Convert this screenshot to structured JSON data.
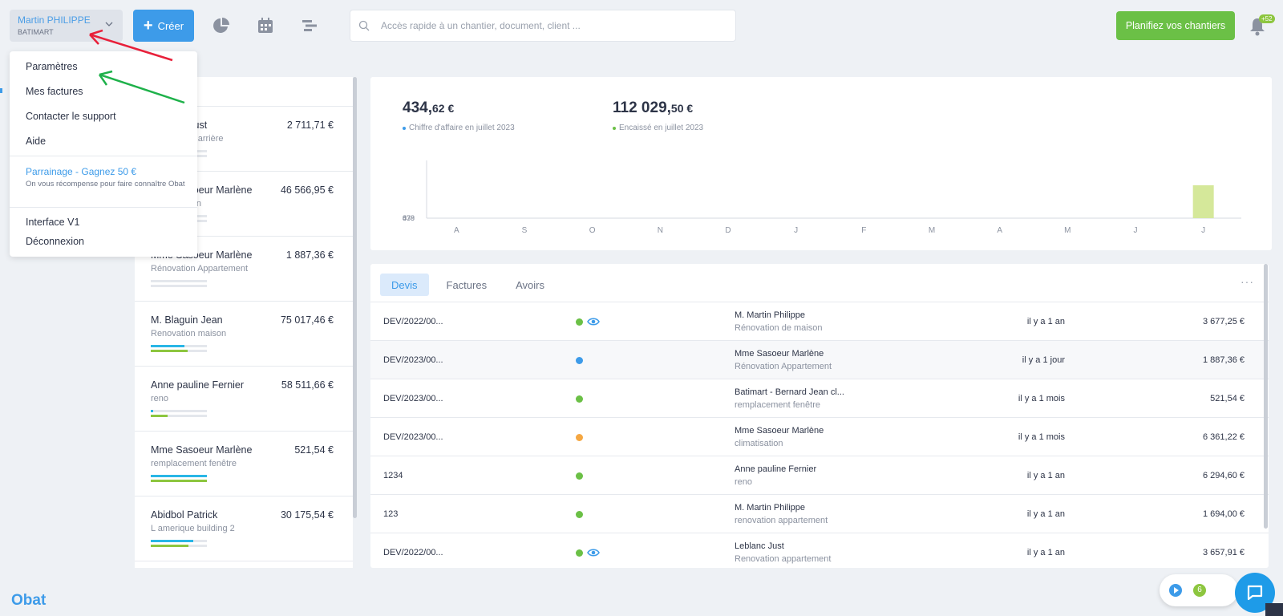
{
  "user": {
    "name": "Martin PHILIPPE",
    "company": "BATIMART"
  },
  "create_label": "Créer",
  "search": {
    "placeholder": "Accès rapide à un chantier, document, client ..."
  },
  "plan_label": "Planifiez vos chantiers",
  "notif_badge": "+52",
  "menu": {
    "settings": "Paramètres",
    "invoices": "Mes factures",
    "support": "Contacter le support",
    "help": "Aide",
    "referral_title": "Parrainage - Gagnez 50 €",
    "referral_sub": "On vous récompense pour faire connaître Obat",
    "interface_v1": "Interface V1",
    "logout": "Déconnexion"
  },
  "projects": [
    {
      "name": "Leblanc Just",
      "sub": "Rénovation arrière",
      "amount": "2 711,71 €",
      "bar1": 0.0,
      "bar2": 0.0
    },
    {
      "name": "Mme Sasoeur Marlène",
      "sub": "Climatisation",
      "amount": "46 566,95 €",
      "bar1": 0.0,
      "bar2": 0.0
    },
    {
      "name": "Mme Sasoeur Marlène",
      "sub": "Rénovation Appartement",
      "amount": "1 887,36 €",
      "bar1": 0.0,
      "bar2": 0.0
    },
    {
      "name": "M. Blaguin Jean",
      "sub": "Renovation maison",
      "amount": "75 017,46 €",
      "bar1": 0.6,
      "bar2": 0.65
    },
    {
      "name": "Anne pauline Fernier",
      "sub": "reno",
      "amount": "58 511,66 €",
      "bar1": 0.04,
      "bar2": 0.3
    },
    {
      "name": "Mme Sasoeur Marlène",
      "sub": "remplacement fenêtre",
      "amount": "521,54 €",
      "bar1": 1.0,
      "bar2": 1.0
    },
    {
      "name": "Abidbol Patrick",
      "sub": "L amerique building 2",
      "amount": "30 175,54 €",
      "bar1": 0.75,
      "bar2": 0.67
    }
  ],
  "stats": {
    "revenue_int": "434,",
    "revenue_dec": "62 €",
    "revenue_label": "Chiffre d'affaire en juillet 2023",
    "cashed_int": "112 029,",
    "cashed_dec": "50 €",
    "cashed_label": "Encaissé en juillet 2023"
  },
  "colors": {
    "blue": "#3d9be9",
    "green": "#6bc046",
    "orange": "#f5a742",
    "bar": "#d5e89a"
  },
  "chart_data": {
    "type": "bar",
    "categories": [
      "A",
      "S",
      "O",
      "N",
      "D",
      "J",
      "F",
      "M",
      "A",
      "M",
      "J",
      "J"
    ],
    "values": [
      0,
      0,
      0,
      0,
      0,
      0,
      0,
      0,
      0,
      0,
      0,
      434.62
    ],
    "ytick_labels": [
      "878",
      "439",
      "0"
    ],
    "ylim": [
      0,
      878
    ]
  },
  "tabs": [
    "Devis",
    "Factures",
    "Avoirs"
  ],
  "quotes": [
    {
      "ref": "DEV/2022/00...",
      "status": "green",
      "viewed": true,
      "client": "M. Martin Philippe",
      "project": "Rénovation de maison",
      "when": "il y a 1 an",
      "total": "3 677,25 €"
    },
    {
      "ref": "DEV/2023/00...",
      "status": "blue",
      "viewed": false,
      "client": "Mme Sasoeur Marlène",
      "project": "Rénovation Appartement",
      "when": "il y a 1 jour",
      "total": "1 887,36 €"
    },
    {
      "ref": "DEV/2023/00...",
      "status": "green",
      "viewed": false,
      "client": "Batimart - Bernard Jean cl...",
      "project": "remplacement fenêtre",
      "when": "il y a 1 mois",
      "total": "521,54 €"
    },
    {
      "ref": "DEV/2023/00...",
      "status": "orange",
      "viewed": false,
      "client": "Mme Sasoeur Marlène",
      "project": "climatisation",
      "when": "il y a 1 mois",
      "total": "6 361,22 €"
    },
    {
      "ref": "1234",
      "status": "green",
      "viewed": false,
      "client": "Anne pauline Fernier",
      "project": "reno",
      "when": "il y a 1 an",
      "total": "6 294,60 €"
    },
    {
      "ref": "123",
      "status": "green",
      "viewed": false,
      "client": "M. Martin Philippe",
      "project": "renovation appartement",
      "when": "il y a 1 an",
      "total": "1 694,00 €"
    },
    {
      "ref": "DEV/2022/00...",
      "status": "green",
      "viewed": true,
      "client": "Leblanc Just",
      "project": "Renovation appartement",
      "when": "il y a 1 an",
      "total": "3 657,91 €"
    }
  ],
  "widget_count": "6",
  "logo": "Obat"
}
